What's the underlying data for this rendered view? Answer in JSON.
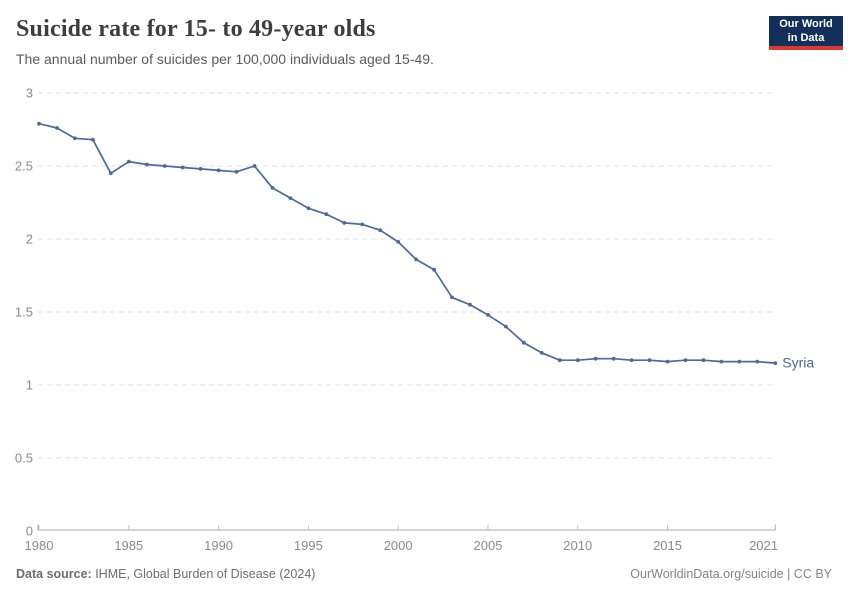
{
  "header": {
    "title": "Suicide rate for 15- to 49-year olds",
    "subtitle": "The annual number of suicides per 100,000 individuals aged 15-49."
  },
  "logo": {
    "line1": "Our World",
    "line2": "in Data",
    "bg_color": "#12305b",
    "accent_color": "#dc3a32"
  },
  "chart_data": {
    "type": "line",
    "title": "Suicide rate for 15- to 49-year olds",
    "subtitle": "The annual number of suicides per 100,000 individuals aged 15-49.",
    "xlabel": "",
    "ylabel": "",
    "xlim": [
      1980,
      2021
    ],
    "ylim": [
      0,
      3
    ],
    "grid": true,
    "legend": "end-of-line-label",
    "xticks": [
      "1980",
      "1985",
      "1990",
      "1995",
      "2000",
      "2005",
      "2010",
      "2015",
      "2021"
    ],
    "yticks": [
      "0",
      "0.5",
      "1",
      "1.5",
      "2",
      "2.5",
      "3"
    ],
    "series": [
      {
        "name": "Syria",
        "color": "#4C6A9C",
        "x": [
          1980,
          1981,
          1982,
          1983,
          1984,
          1985,
          1986,
          1987,
          1988,
          1989,
          1990,
          1991,
          1992,
          1993,
          1994,
          1995,
          1996,
          1997,
          1998,
          1999,
          2000,
          2001,
          2002,
          2003,
          2004,
          2005,
          2006,
          2007,
          2008,
          2009,
          2010,
          2011,
          2012,
          2013,
          2014,
          2015,
          2016,
          2017,
          2018,
          2019,
          2020,
          2021
        ],
        "values": [
          2.79,
          2.76,
          2.69,
          2.68,
          2.45,
          2.53,
          2.51,
          2.5,
          2.49,
          2.48,
          2.47,
          2.46,
          2.5,
          2.35,
          2.28,
          2.21,
          2.17,
          2.11,
          2.1,
          2.06,
          1.98,
          1.86,
          1.79,
          1.6,
          1.55,
          1.48,
          1.4,
          1.29,
          1.22,
          1.17,
          1.17,
          1.18,
          1.18,
          1.17,
          1.17,
          1.16,
          1.17,
          1.17,
          1.16,
          1.16,
          1.16,
          1.15
        ]
      }
    ],
    "colors": {
      "grid": "#e0e0e0",
      "axis": "#a8a8a8",
      "tick": "#c4c4c4",
      "tick_label": "#8a8a8a"
    }
  },
  "footer": {
    "source_label": "Data source:",
    "source_text": " IHME, Global Burden of Disease (2024)",
    "credit": "OurWorldinData.org/suicide | CC BY"
  }
}
